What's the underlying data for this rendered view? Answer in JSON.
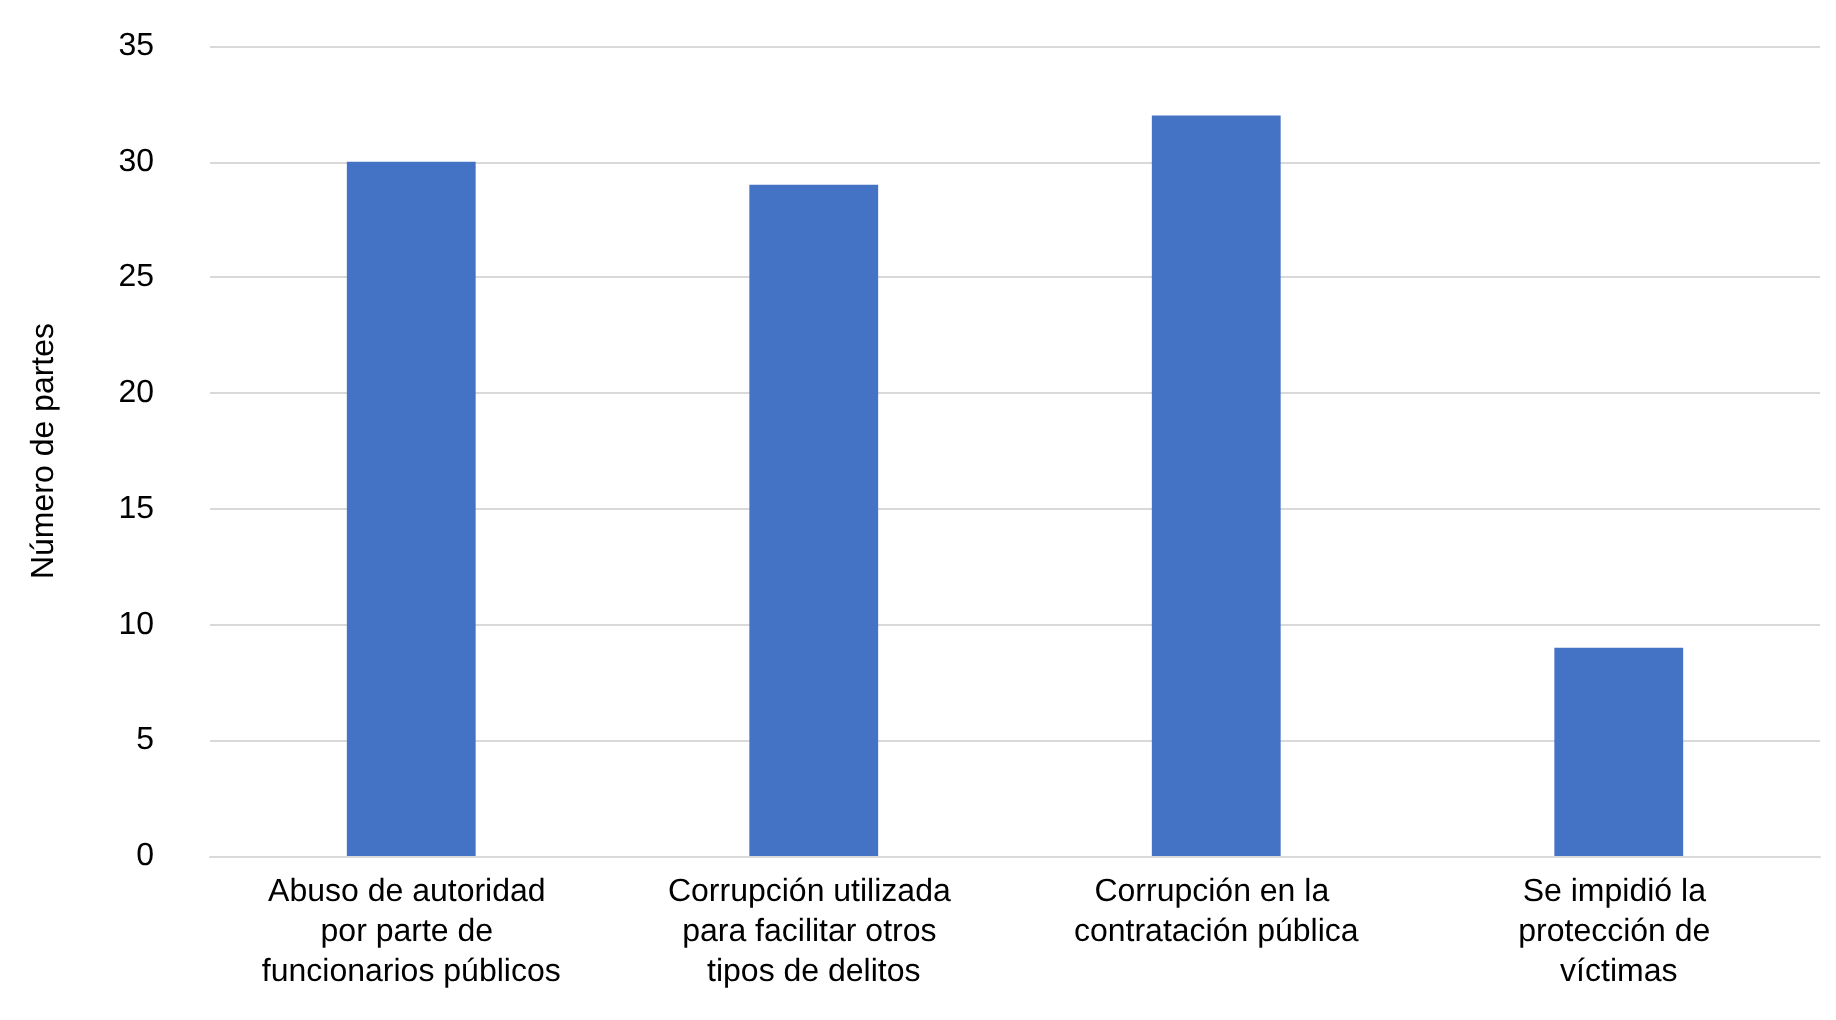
{
  "chart_data": {
    "type": "bar",
    "ylabel": "Número de partes",
    "categories": [
      "Abuso de autoridad por parte de funcionarios públicos",
      "Corrupción utilizada para facilitar otros tipos de delitos",
      "Corrupción en la contratación pública",
      "Se impidió la protección de víctimas"
    ],
    "values": [
      30,
      29,
      32,
      9
    ],
    "color": "#4472c4",
    "ylim": [
      0,
      35
    ],
    "yticks": [
      0,
      5,
      10,
      15,
      20,
      25,
      30,
      35
    ],
    "grid": "y"
  }
}
